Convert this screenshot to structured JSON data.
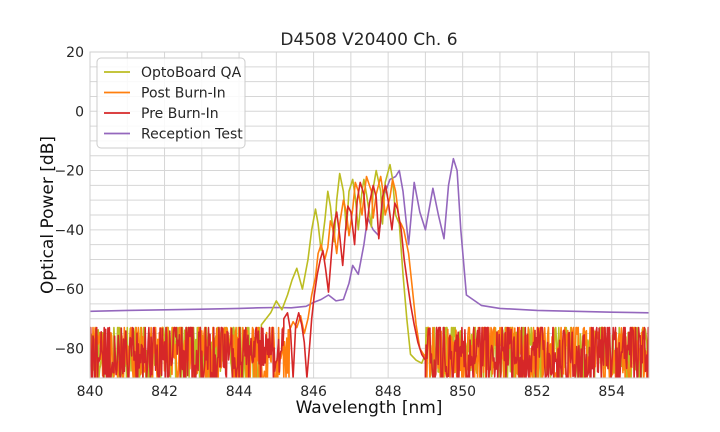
{
  "chart_data": {
    "type": "line",
    "title": "D4508 V20400 Ch. 6",
    "xlabel": "Wavelength [nm]",
    "ylabel": "Optical Power [dB]",
    "xlim": [
      840,
      855
    ],
    "ylim": [
      -90,
      20
    ],
    "x_ticks": [
      840,
      842,
      844,
      846,
      848,
      850,
      852,
      854
    ],
    "x_tick_labels": [
      "840",
      "842",
      "844",
      "846",
      "848",
      "850",
      "852",
      "854"
    ],
    "y_ticks": [
      20,
      0,
      -20,
      -40,
      -60,
      -80
    ],
    "y_tick_labels": [
      "20",
      "0",
      "−20",
      "−40",
      "−60",
      "−80"
    ],
    "grid": true,
    "legend_position": "top-left",
    "noise_floor": {
      "mean": -80,
      "min": -90,
      "max": -73
    },
    "series": [
      {
        "name": "OptoBoard QA",
        "color": "#bcbd22",
        "noise_range": [
          [
            840,
            844.6
          ],
          [
            849.0,
            855
          ]
        ],
        "x": [
          844.6,
          844.85,
          845.0,
          845.15,
          845.3,
          845.42,
          845.55,
          845.7,
          845.85,
          845.95,
          846.05,
          846.12,
          846.2,
          846.3,
          846.38,
          846.45,
          846.55,
          846.62,
          846.7,
          846.8,
          846.88,
          846.95,
          847.05,
          847.12,
          847.2,
          847.3,
          847.35,
          847.42,
          847.55,
          847.6,
          847.68,
          847.8,
          847.85,
          847.92,
          848.05,
          848.12,
          848.2,
          848.3,
          848.4,
          848.5,
          848.6,
          848.75,
          848.9,
          849.0
        ],
        "y": [
          -72,
          -68,
          -64,
          -67,
          -62,
          -57,
          -53,
          -60,
          -50,
          -40,
          -33,
          -38,
          -47,
          -37,
          -27,
          -32,
          -44,
          -30,
          -21,
          -27,
          -40,
          -27,
          -23,
          -29,
          -40,
          -27,
          -23,
          -28,
          -39,
          -26,
          -20,
          -27,
          -38,
          -24,
          -18,
          -23,
          -35,
          -38,
          -55,
          -70,
          -82,
          -84,
          -85,
          -82
        ]
      },
      {
        "name": "Post Burn-In",
        "color": "#ff7f0e",
        "noise_range": [
          [
            840,
            845.35
          ],
          [
            849.0,
            855
          ]
        ],
        "x": [
          845.35,
          845.45,
          845.55,
          845.65,
          845.75,
          845.85,
          845.95,
          846.05,
          846.12,
          846.2,
          846.3,
          846.38,
          846.45,
          846.55,
          846.62,
          846.7,
          846.8,
          846.88,
          846.95,
          847.05,
          847.12,
          847.2,
          847.3,
          847.35,
          847.42,
          847.55,
          847.6,
          847.68,
          847.8,
          847.85,
          847.92,
          848.05,
          848.12,
          848.2,
          848.3,
          848.35,
          848.42,
          848.55,
          848.65,
          848.75,
          848.85,
          849.0
        ],
        "y": [
          -74,
          -71,
          -73,
          -69,
          -75,
          -70,
          -62,
          -56,
          -48,
          -45,
          -50,
          -46,
          -37,
          -41,
          -48,
          -38,
          -30,
          -34,
          -42,
          -33,
          -24,
          -27,
          -35,
          -29,
          -22,
          -27,
          -36,
          -28,
          -22,
          -26,
          -35,
          -29,
          -23,
          -27,
          -37,
          -38,
          -40,
          -48,
          -60,
          -72,
          -80,
          -83
        ]
      },
      {
        "name": "Pre Burn-In",
        "color": "#d62728",
        "noise_range": [
          [
            840,
            845.2
          ],
          [
            849.0,
            855
          ]
        ],
        "x": [
          845.2,
          845.3,
          845.38,
          845.45,
          845.52,
          845.6,
          845.68,
          845.75,
          845.82,
          845.9,
          845.95,
          846.02,
          846.1,
          846.18,
          846.25,
          846.32,
          846.4,
          846.48,
          846.55,
          846.62,
          846.7,
          846.78,
          846.85,
          846.92,
          847.0,
          847.1,
          847.17,
          847.25,
          847.35,
          847.42,
          847.5,
          847.6,
          847.68,
          847.75,
          847.85,
          847.93,
          848.0,
          848.1,
          848.18,
          848.25,
          848.35,
          848.43,
          848.52,
          848.6,
          848.7,
          848.8,
          848.9,
          849.0
        ],
        "y": [
          -70,
          -68,
          -74,
          -90,
          -72,
          -68,
          -72,
          -78,
          -90,
          -78,
          -70,
          -62,
          -55,
          -50,
          -47,
          -53,
          -61,
          -48,
          -38,
          -34,
          -42,
          -52,
          -41,
          -32,
          -34,
          -45,
          -30,
          -24,
          -28,
          -40,
          -31,
          -25,
          -29,
          -43,
          -29,
          -25,
          -30,
          -40,
          -31,
          -33,
          -40,
          -50,
          -58,
          -65,
          -72,
          -78,
          -82,
          -84
        ]
      },
      {
        "name": "Reception Test",
        "color": "#9467bd",
        "x": [
          840.0,
          841.0,
          842.0,
          843.0,
          844.0,
          844.5,
          845.0,
          845.4,
          845.8,
          846.0,
          846.2,
          846.4,
          846.6,
          846.8,
          846.95,
          847.05,
          847.2,
          847.35,
          847.45,
          847.6,
          847.75,
          847.9,
          848.05,
          848.2,
          848.3,
          848.4,
          848.55,
          848.7,
          848.85,
          849.0,
          849.2,
          849.35,
          849.5,
          849.62,
          849.75,
          849.85,
          849.95,
          850.1,
          850.5,
          851.0,
          852.0,
          853.0,
          854.0,
          855.0
        ],
        "y": [
          -67.5,
          -67.2,
          -67.0,
          -66.8,
          -66.5,
          -66.3,
          -66.2,
          -66.3,
          -65.8,
          -64.5,
          -63.5,
          -62.0,
          -64.0,
          -63.5,
          -58.0,
          -52.0,
          -55.0,
          -45.0,
          -36.0,
          -40.0,
          -42.0,
          -28.0,
          -23.0,
          -22.0,
          -20.0,
          -27.0,
          -45.0,
          -24.0,
          -34.0,
          -40.0,
          -26.0,
          -35.0,
          -43.0,
          -25.0,
          -16.0,
          -20.0,
          -40.0,
          -62.0,
          -65.5,
          -66.5,
          -67.2,
          -67.5,
          -67.8,
          -68.0
        ]
      }
    ]
  }
}
